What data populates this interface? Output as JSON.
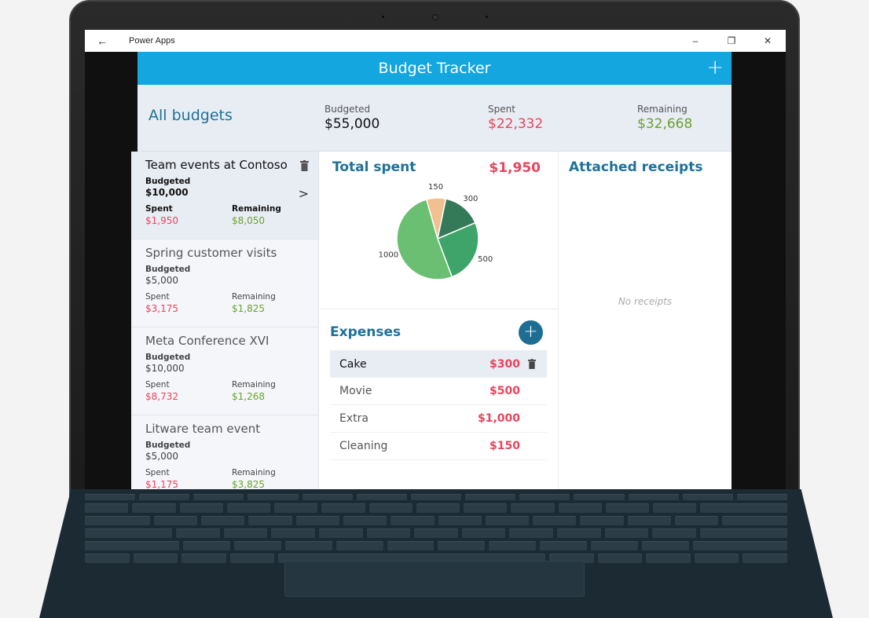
{
  "window": {
    "title": "Power Apps",
    "back_icon": "←",
    "minimize_icon": "–",
    "restore_icon": "❐",
    "close_icon": "✕"
  },
  "app": {
    "title": "Budget Tracker",
    "add_icon": "+"
  },
  "summary": {
    "heading": "All budgets",
    "budgeted_label": "Budgeted",
    "budgeted_value": "$55,000",
    "spent_label": "Spent",
    "spent_value": "$22,332",
    "remaining_label": "Remaining",
    "remaining_value": "$32,668"
  },
  "budgets": [
    {
      "name": "Team events at Contoso",
      "budgeted_label": "Budgeted",
      "budgeted": "$10,000",
      "spent_label": "Spent",
      "spent": "$1,950",
      "remaining_label": "Remaining",
      "remaining": "$8,050",
      "selected": true
    },
    {
      "name": "Spring customer visits",
      "budgeted_label": "Budgeted",
      "budgeted": "$5,000",
      "spent_label": "Spent",
      "spent": "$3,175",
      "remaining_label": "Remaining",
      "remaining": "$1,825"
    },
    {
      "name": "Meta Conference XVI",
      "budgeted_label": "Budgeted",
      "budgeted": "$10,000",
      "spent_label": "Spent",
      "spent": "$8,732",
      "remaining_label": "Remaining",
      "remaining": "$1,268"
    },
    {
      "name": "Litware team event",
      "budgeted_label": "Budgeted",
      "budgeted": "$5,000",
      "spent_label": "Spent",
      "spent": "$1,175",
      "remaining_label": "Remaining",
      "remaining": "$3,825"
    }
  ],
  "total_spent": {
    "heading": "Total spent",
    "value": "$1,950"
  },
  "chart_data": {
    "type": "pie",
    "title": "Total spent",
    "categories": [
      "Cleaning",
      "Cake",
      "Movie",
      "Extra"
    ],
    "values": [
      150,
      300,
      500,
      1000
    ],
    "labels": [
      "150",
      "300",
      "500",
      "1000"
    ],
    "colors": [
      "#f2c08f",
      "#357a58",
      "#3fa46a",
      "#6abf72"
    ],
    "legend": false
  },
  "expenses": {
    "heading": "Expenses",
    "add_icon": "+",
    "items": [
      {
        "name": "Cake",
        "amount": "$300",
        "selected": true
      },
      {
        "name": "Movie",
        "amount": "$500"
      },
      {
        "name": "Extra",
        "amount": "$1,000"
      },
      {
        "name": "Cleaning",
        "amount": "$150"
      }
    ]
  },
  "receipts": {
    "heading": "Attached receipts",
    "empty_text": "No receipts"
  },
  "colors": {
    "header": "#14a6df",
    "accent_text": "#1e7199",
    "spent": "#e8455e",
    "remaining": "#6aa22e",
    "summary_bg": "#e8ecf3"
  }
}
